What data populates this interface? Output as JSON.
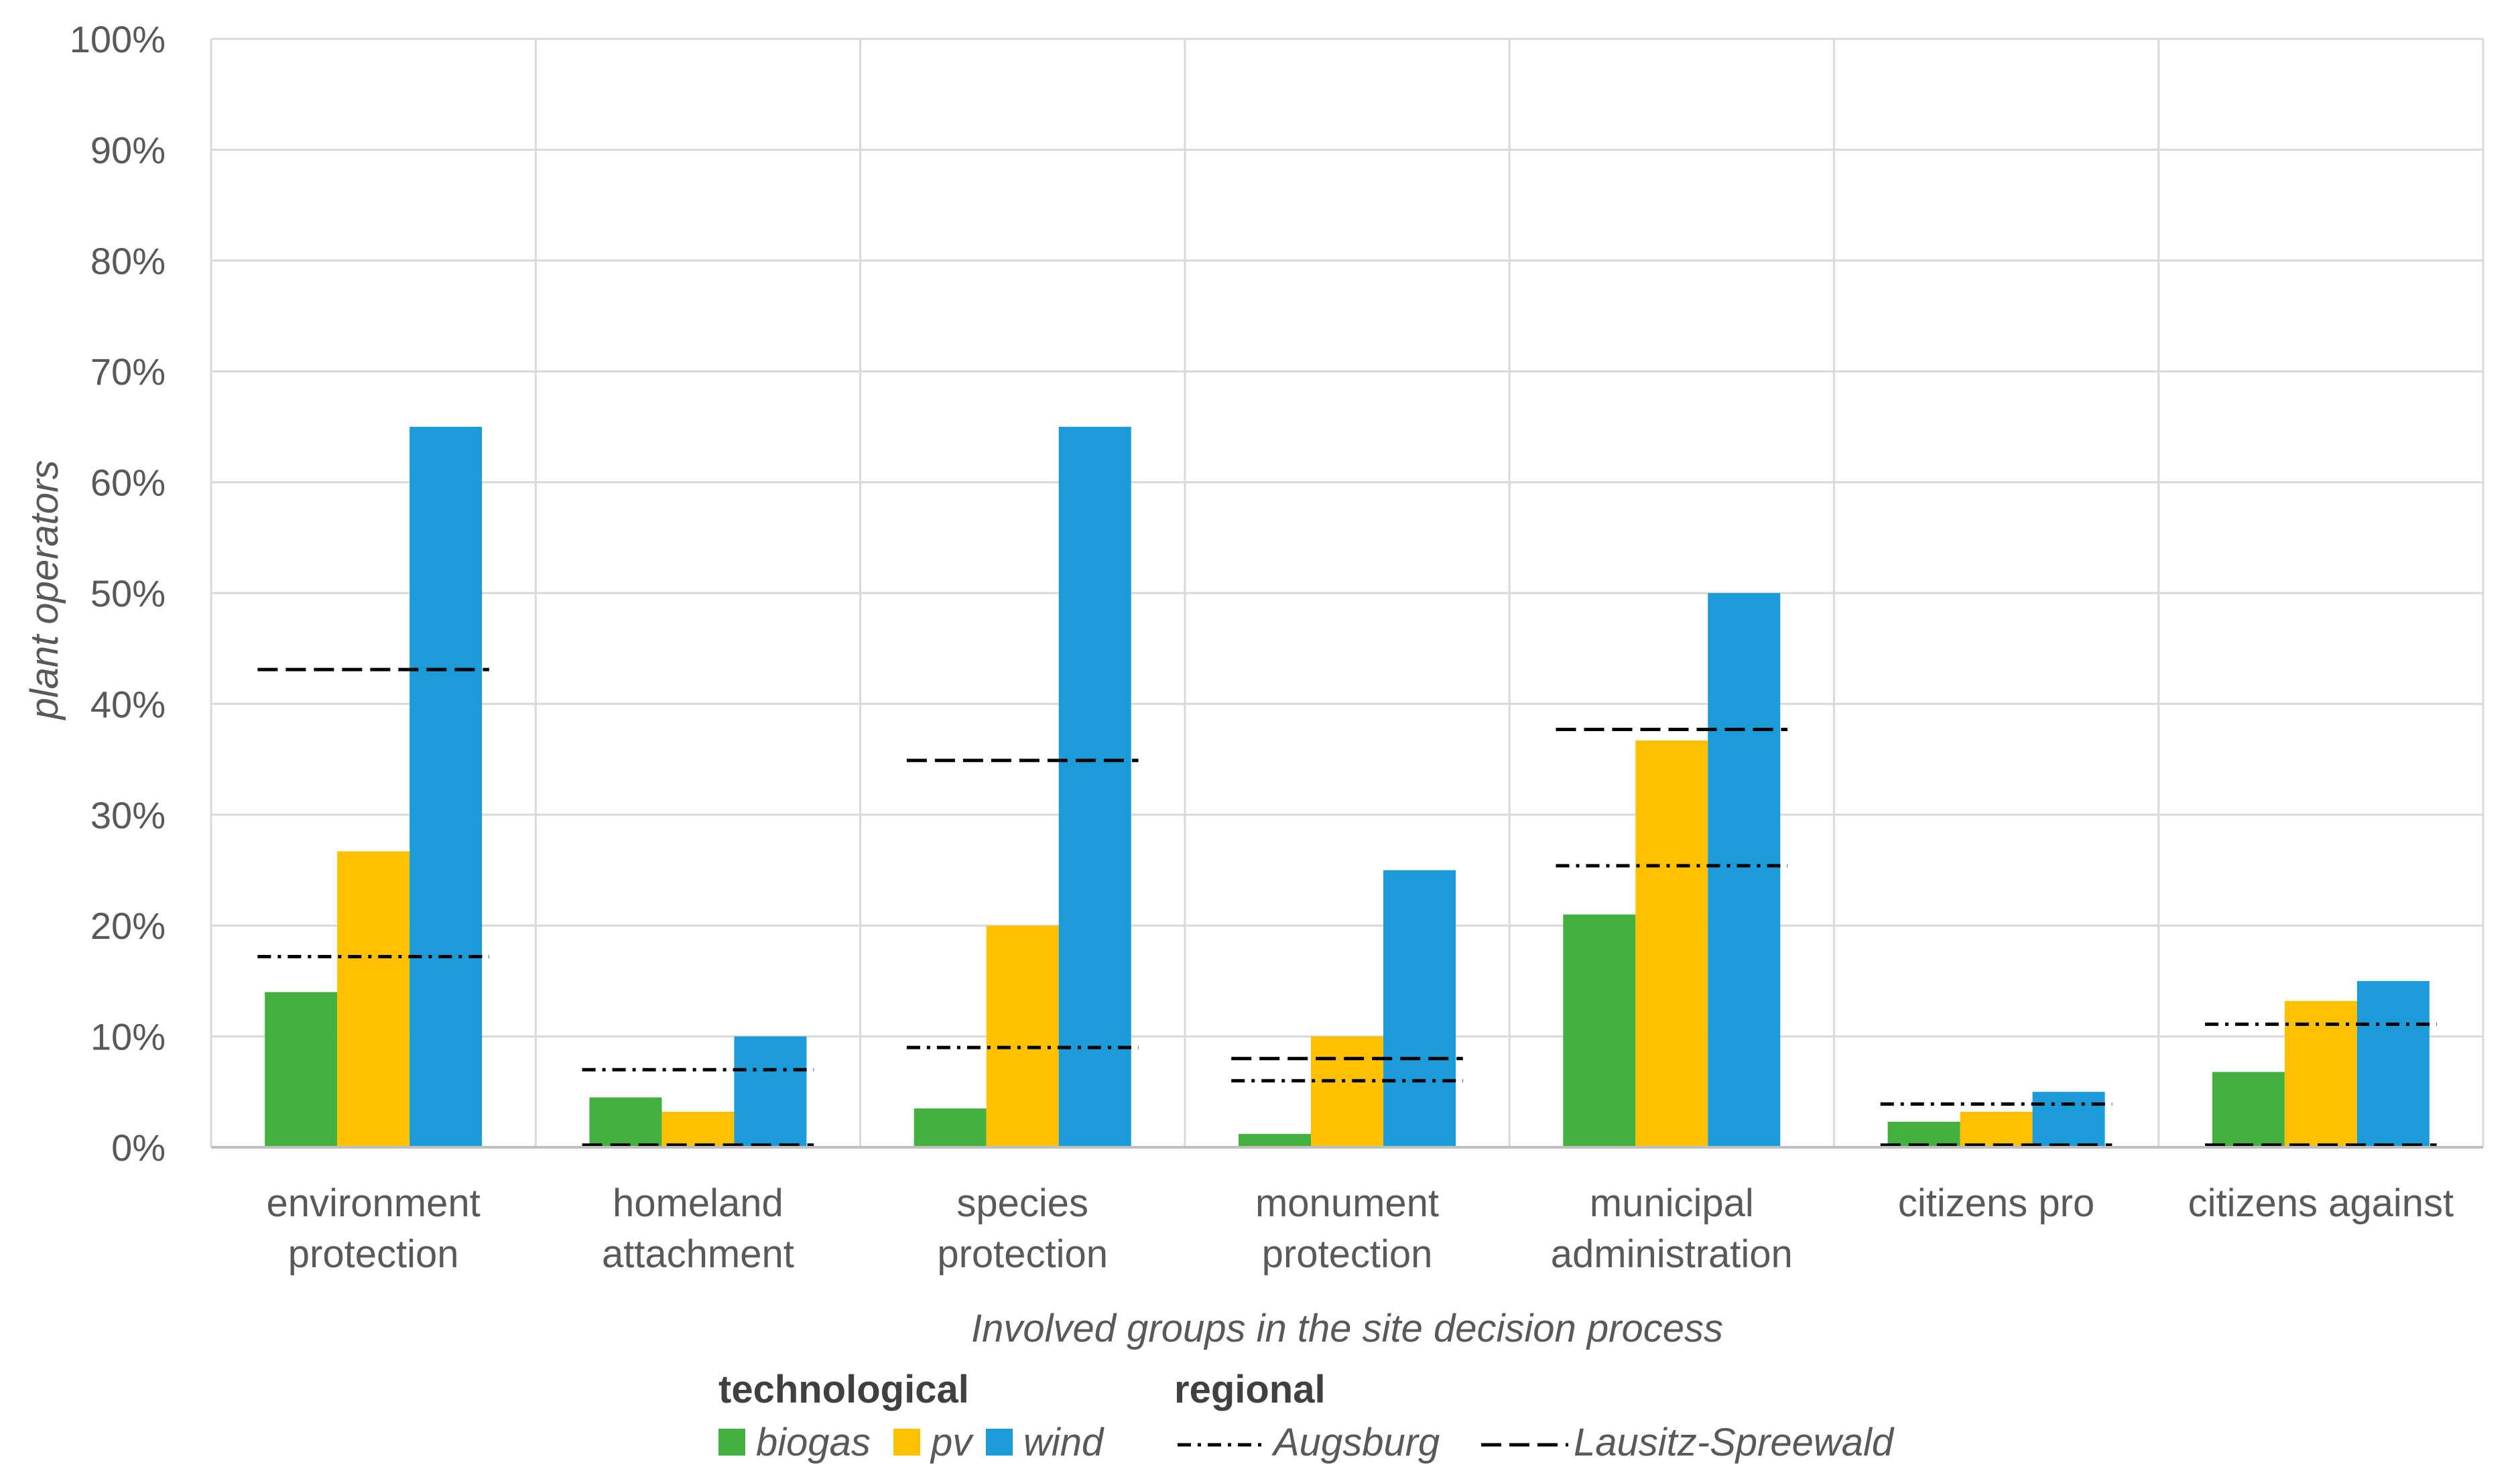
{
  "chart_data": {
    "type": "bar",
    "categories": [
      [
        "environment",
        "protection"
      ],
      [
        "homeland",
        "attachment"
      ],
      [
        "species",
        "protection"
      ],
      [
        "monument",
        "protection"
      ],
      [
        "municipal",
        "administration"
      ],
      [
        "citizens pro"
      ],
      [
        "citizens against"
      ]
    ],
    "series": [
      {
        "name": "biogas",
        "color": "#43B13E",
        "values": [
          14,
          4.5,
          3.5,
          1.2,
          21,
          2.3,
          6.8
        ]
      },
      {
        "name": "pv",
        "color": "#FFC000",
        "values": [
          26.7,
          3.2,
          20,
          10,
          36.7,
          3.2,
          13.2
        ]
      },
      {
        "name": "wind",
        "color": "#1B9CD9",
        "values": [
          65,
          10,
          65,
          25,
          50,
          5,
          15
        ]
      }
    ],
    "reference_lines": [
      {
        "name": "Augsburg",
        "style": "dash-dot",
        "values": [
          17.2,
          7,
          9,
          6,
          25.4,
          3.9,
          11.1
        ]
      },
      {
        "name": "Lausitz-Spreewald",
        "style": "dashed",
        "values": [
          43.1,
          0.2,
          34.9,
          8,
          37.7,
          0.2,
          0.2
        ]
      }
    ],
    "title": "",
    "xlabel": "Involved groups in the site decision process",
    "ylabel": "plant operators",
    "ylim": [
      0,
      100
    ],
    "yticks": [
      "0%",
      "10%",
      "20%",
      "30%",
      "40%",
      "50%",
      "60%",
      "70%",
      "80%",
      "90%",
      "100%"
    ],
    "grid": true,
    "legend": {
      "groups": [
        {
          "heading": "technological",
          "items": [
            "biogas",
            "pv",
            "wind"
          ]
        },
        {
          "heading": "regional",
          "items": [
            "Augsburg",
            "Lausitz-Spreewald"
          ]
        }
      ],
      "placement": "bottom"
    }
  }
}
